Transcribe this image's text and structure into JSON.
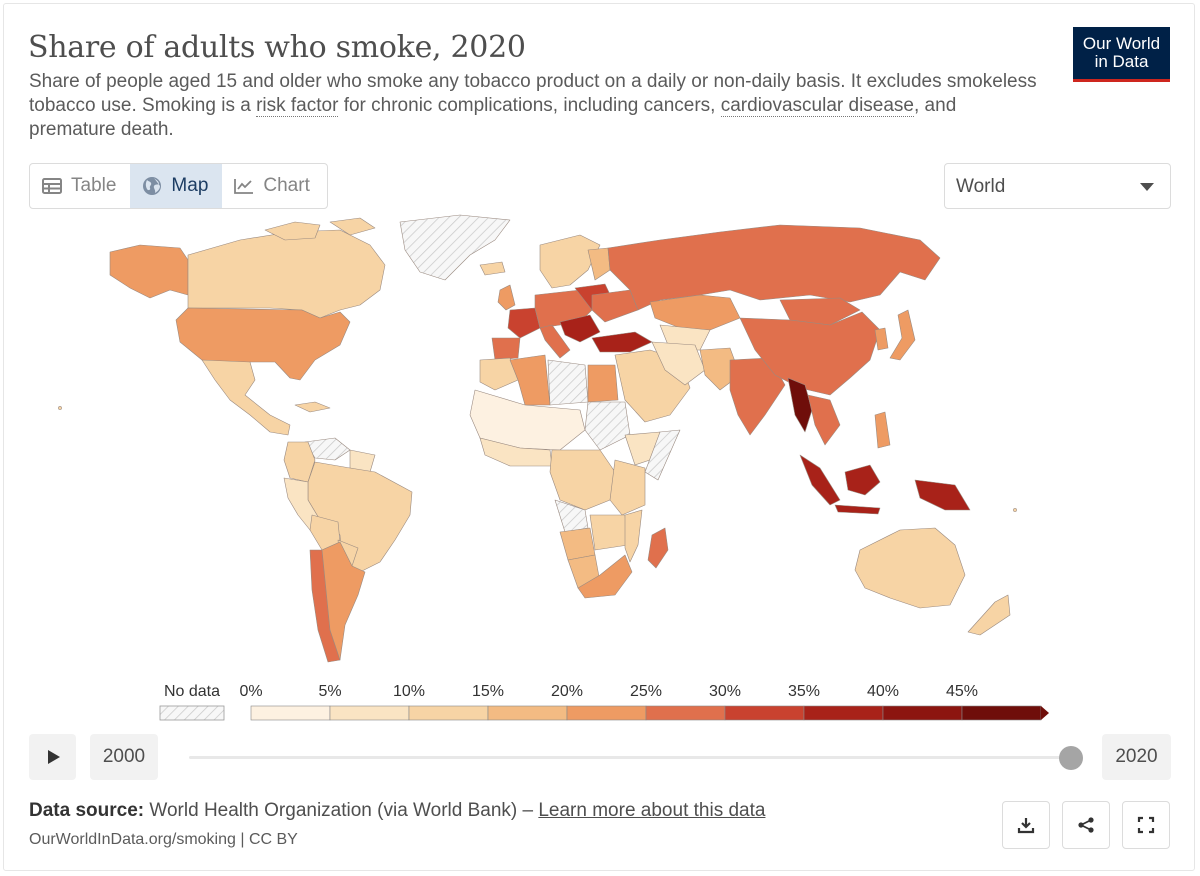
{
  "header": {
    "title": "Share of adults who smoke, 2020",
    "subtitle_parts": [
      "Share of people aged 15 and older who smoke any tobacco product on a daily or non-daily basis. It excludes smokeless tobacco use. Smoking is a ",
      "risk factor",
      " for chronic complications, including cancers, ",
      "cardiovascular disease",
      ", and premature death."
    ],
    "logo_line1": "Our World",
    "logo_line2": "in Data"
  },
  "tabs": [
    {
      "label": "Table",
      "icon": "table-icon",
      "active": false
    },
    {
      "label": "Map",
      "icon": "globe-icon",
      "active": true
    },
    {
      "label": "Chart",
      "icon": "line-chart-icon",
      "active": false
    }
  ],
  "region_select": {
    "value": "World"
  },
  "legend": {
    "no_data_label": "No data",
    "bins": [
      "0%",
      "5%",
      "10%",
      "15%",
      "20%",
      "25%",
      "30%",
      "35%",
      "40%",
      "45%"
    ],
    "colors": [
      "#fdf1e1",
      "#fae4c3",
      "#f7d4a5",
      "#f3bb83",
      "#ee9b63",
      "#e0704d",
      "#c9422f",
      "#a82219",
      "#8c1510",
      "#6f0e0a"
    ]
  },
  "timeline": {
    "start_year": "2000",
    "end_year": "2020",
    "position": 1.0
  },
  "footer": {
    "source_label": "Data source:",
    "source_text": " World Health Organization (via World Bank) – ",
    "learn_more": "Learn more about this data",
    "citation": "OurWorldInData.org/smoking | CC BY"
  },
  "actions": [
    {
      "name": "download",
      "icon": "download-icon"
    },
    {
      "name": "share",
      "icon": "share-icon"
    },
    {
      "name": "fullscreen",
      "icon": "fullscreen-icon"
    }
  ]
}
